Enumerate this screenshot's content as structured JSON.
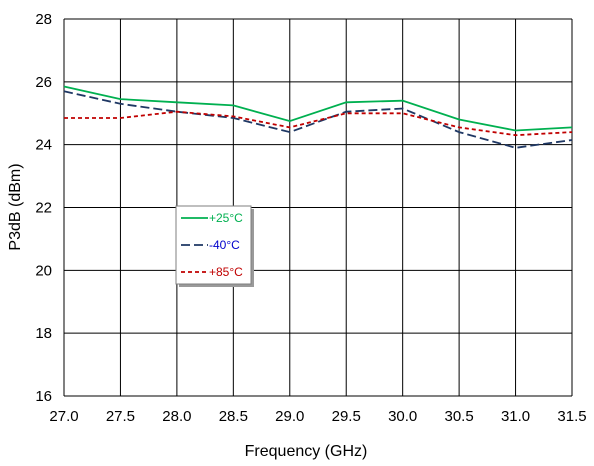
{
  "chart_data": {
    "type": "line",
    "title": "",
    "xlabel": "Frequency (GHz)",
    "ylabel": "P3dB (dBm)",
    "xlim": [
      27.0,
      31.5
    ],
    "ylim": [
      16,
      28
    ],
    "x": [
      27.0,
      27.5,
      28.0,
      28.5,
      29.0,
      29.5,
      30.0,
      30.5,
      31.0,
      31.5
    ],
    "x_tick_labels": [
      "27.0",
      "27.5",
      "28.0",
      "28.5",
      "29.0",
      "29.5",
      "30.0",
      "30.5",
      "31.0",
      "31.5"
    ],
    "y_tick_labels": [
      "16",
      "18",
      "20",
      "22",
      "24",
      "26",
      "28"
    ],
    "grid": true,
    "legend_position": "center-left",
    "series": [
      {
        "name": "+25°C",
        "color": "#00b050",
        "dash": "solid",
        "values": [
          25.85,
          25.45,
          25.35,
          25.25,
          24.75,
          25.35,
          25.4,
          24.8,
          24.45,
          24.55
        ]
      },
      {
        "name": "-40°C",
        "color": "#1f3864",
        "dash": "long-dash",
        "values": [
          25.7,
          25.3,
          25.05,
          24.85,
          24.4,
          25.05,
          25.15,
          24.4,
          23.9,
          24.15
        ]
      },
      {
        "name": "+85°C",
        "color": "#c00000",
        "dash": "short-dash",
        "values": [
          24.85,
          24.85,
          25.05,
          24.9,
          24.55,
          25.0,
          25.0,
          24.55,
          24.3,
          24.4
        ]
      }
    ],
    "legend_text_colors": [
      "#00b050",
      "#0000cc",
      "#c00000"
    ]
  }
}
